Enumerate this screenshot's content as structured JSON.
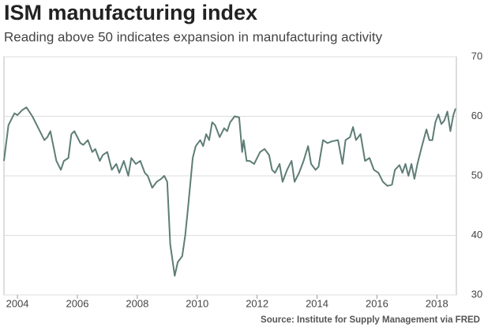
{
  "chart_data": {
    "type": "line",
    "title": "ISM manufacturing index",
    "subtitle": "Reading above 50 indicates expansion in manufacturing activity",
    "source": "Source: Institute for Supply Management via FRED",
    "series": [
      {
        "name": "ISM manufacturing index",
        "color": "#5e7d76",
        "x": [
          2003.55,
          2003.7,
          2003.9,
          2004.0,
          2004.15,
          2004.3,
          2004.5,
          2004.7,
          2004.9,
          2005.0,
          2005.1,
          2005.2,
          2005.3,
          2005.45,
          2005.55,
          2005.7,
          2005.8,
          2005.9,
          2006.1,
          2006.2,
          2006.35,
          2006.5,
          2006.6,
          2006.75,
          2006.85,
          2007.0,
          2007.15,
          2007.3,
          2007.4,
          2007.55,
          2007.7,
          2007.8,
          2007.95,
          2008.1,
          2008.25,
          2008.35,
          2008.5,
          2008.65,
          2008.8,
          2008.9,
          2009.0,
          2009.1,
          2009.25,
          2009.35,
          2009.5,
          2009.6,
          2009.7,
          2009.85,
          2009.95,
          2010.1,
          2010.2,
          2010.3,
          2010.4,
          2010.5,
          2010.6,
          2010.75,
          2010.9,
          2011.0,
          2011.1,
          2011.25,
          2011.4,
          2011.5,
          2011.55,
          2011.65,
          2011.75,
          2011.9,
          2012.1,
          2012.25,
          2012.4,
          2012.5,
          2012.6,
          2012.75,
          2012.85,
          2013.0,
          2013.15,
          2013.25,
          2013.4,
          2013.55,
          2013.7,
          2013.8,
          2013.95,
          2014.05,
          2014.2,
          2014.35,
          2014.5,
          2014.7,
          2014.85,
          2014.95,
          2015.1,
          2015.2,
          2015.3,
          2015.45,
          2015.6,
          2015.75,
          2015.9,
          2016.05,
          2016.2,
          2016.35,
          2016.5,
          2016.6,
          2016.75,
          2016.85,
          2016.95,
          2017.05,
          2017.15,
          2017.25,
          2017.35,
          2017.5,
          2017.65,
          2017.75,
          2017.85,
          2017.95,
          2018.05,
          2018.15,
          2018.25,
          2018.35,
          2018.45,
          2018.55,
          2018.62
        ],
        "values": [
          52.5,
          58.5,
          60.5,
          60.2,
          61.0,
          61.5,
          60.0,
          58.0,
          56.0,
          56.5,
          57.5,
          55.0,
          52.5,
          51.0,
          52.5,
          53.0,
          57.0,
          57.5,
          55.5,
          55.2,
          56.0,
          54.0,
          54.5,
          52.5,
          53.5,
          54.0,
          51.0,
          52.0,
          50.5,
          52.5,
          50.0,
          53.0,
          52.0,
          52.5,
          50.5,
          50.0,
          48.0,
          49.0,
          49.5,
          50.0,
          49.0,
          38.5,
          33.2,
          35.5,
          36.5,
          40.0,
          45.0,
          53.0,
          55.0,
          56.0,
          55.0,
          57.0,
          56.0,
          59.0,
          58.5,
          56.5,
          58.0,
          57.5,
          59.0,
          60.0,
          59.8,
          54.0,
          56.0,
          52.5,
          52.5,
          52.0,
          54.0,
          54.5,
          53.5,
          51.0,
          50.5,
          52.0,
          49.0,
          51.0,
          52.5,
          49.0,
          50.5,
          52.5,
          55.0,
          52.0,
          51.0,
          51.5,
          56.0,
          55.5,
          55.8,
          56.0,
          52.0,
          56.0,
          56.5,
          58.2,
          56.0,
          57.0,
          52.5,
          53.0,
          51.0,
          50.5,
          49.0,
          48.3,
          48.5,
          51.0,
          51.8,
          50.5,
          52.0,
          50.0,
          52.0,
          49.5,
          52.0,
          55.0,
          57.8,
          56.0,
          56.0,
          59.0,
          60.3,
          58.7,
          59.3,
          60.8,
          57.5,
          60.2,
          61.3
        ]
      }
    ],
    "xlim": [
      2003.55,
      2018.65
    ],
    "ylim": [
      30,
      70
    ],
    "xticks": [
      2004,
      2006,
      2008,
      2010,
      2012,
      2014,
      2016,
      2018
    ],
    "yticks": [
      30,
      40,
      50,
      60,
      70
    ],
    "grid": true
  }
}
